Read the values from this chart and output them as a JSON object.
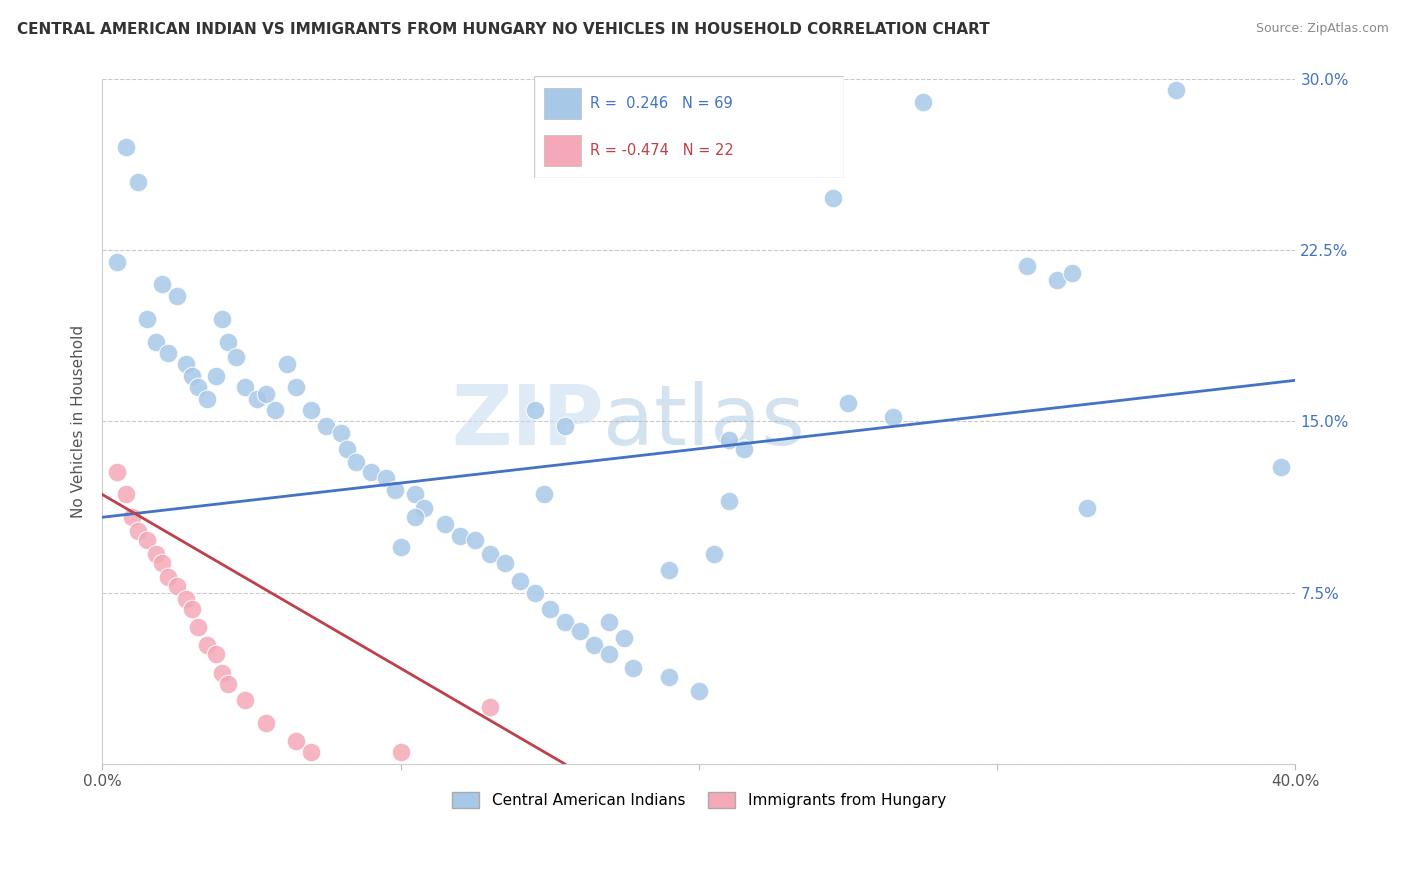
{
  "title": "CENTRAL AMERICAN INDIAN VS IMMIGRANTS FROM HUNGARY NO VEHICLES IN HOUSEHOLD CORRELATION CHART",
  "source": "Source: ZipAtlas.com",
  "ylabel": "No Vehicles in Household",
  "xlim": [
    0.0,
    0.4
  ],
  "ylim": [
    0.0,
    0.3
  ],
  "xtick_labels": [
    "0.0%",
    "",
    "",
    "",
    "40.0%"
  ],
  "ytick_labels_right": [
    "",
    "7.5%",
    "15.0%",
    "22.5%",
    "30.0%"
  ],
  "yticks": [
    0.0,
    0.075,
    0.15,
    0.225,
    0.3
  ],
  "R_blue": 0.246,
  "N_blue": 69,
  "R_pink": -0.474,
  "N_pink": 22,
  "legend_label_blue": "Central American Indians",
  "legend_label_pink": "Immigrants from Hungary",
  "blue_color": "#a8c8e8",
  "pink_color": "#f4a8b8",
  "line_blue": "#4472c4",
  "line_pink": "#c0404a",
  "blue_scatter_x": [
    0.008,
    0.012,
    0.005,
    0.02,
    0.025,
    0.015,
    0.018,
    0.022,
    0.028,
    0.03,
    0.032,
    0.035,
    0.038,
    0.04,
    0.042,
    0.045,
    0.048,
    0.052,
    0.055,
    0.058,
    0.062,
    0.065,
    0.07,
    0.075,
    0.08,
    0.082,
    0.085,
    0.09,
    0.095,
    0.098,
    0.105,
    0.108,
    0.115,
    0.12,
    0.125,
    0.13,
    0.135,
    0.14,
    0.145,
    0.15,
    0.155,
    0.16,
    0.165,
    0.17,
    0.178,
    0.19,
    0.2,
    0.145,
    0.155,
    0.21,
    0.215,
    0.31,
    0.32,
    0.25,
    0.265,
    0.245,
    0.275,
    0.33,
    0.36,
    0.325,
    0.395,
    0.148,
    0.21,
    0.1,
    0.105,
    0.19,
    0.205,
    0.17,
    0.175
  ],
  "blue_scatter_y": [
    0.27,
    0.255,
    0.22,
    0.21,
    0.205,
    0.195,
    0.185,
    0.18,
    0.175,
    0.17,
    0.165,
    0.16,
    0.17,
    0.195,
    0.185,
    0.178,
    0.165,
    0.16,
    0.162,
    0.155,
    0.175,
    0.165,
    0.155,
    0.148,
    0.145,
    0.138,
    0.132,
    0.128,
    0.125,
    0.12,
    0.118,
    0.112,
    0.105,
    0.1,
    0.098,
    0.092,
    0.088,
    0.08,
    0.075,
    0.068,
    0.062,
    0.058,
    0.052,
    0.048,
    0.042,
    0.038,
    0.032,
    0.155,
    0.148,
    0.142,
    0.138,
    0.218,
    0.212,
    0.158,
    0.152,
    0.248,
    0.29,
    0.112,
    0.295,
    0.215,
    0.13,
    0.118,
    0.115,
    0.095,
    0.108,
    0.085,
    0.092,
    0.062,
    0.055
  ],
  "pink_scatter_x": [
    0.005,
    0.008,
    0.01,
    0.012,
    0.015,
    0.018,
    0.02,
    0.022,
    0.025,
    0.028,
    0.03,
    0.032,
    0.035,
    0.038,
    0.04,
    0.042,
    0.048,
    0.055,
    0.065,
    0.07,
    0.1,
    0.13
  ],
  "pink_scatter_y": [
    0.128,
    0.118,
    0.108,
    0.102,
    0.098,
    0.092,
    0.088,
    0.082,
    0.078,
    0.072,
    0.068,
    0.06,
    0.052,
    0.048,
    0.04,
    0.035,
    0.028,
    0.018,
    0.01,
    0.005,
    0.005,
    0.025
  ],
  "blue_line_x0": 0.0,
  "blue_line_y0": 0.108,
  "blue_line_x1": 0.4,
  "blue_line_y1": 0.168,
  "pink_line_x0": 0.0,
  "pink_line_y0": 0.118,
  "pink_line_x1": 0.155,
  "pink_line_y1": 0.0
}
